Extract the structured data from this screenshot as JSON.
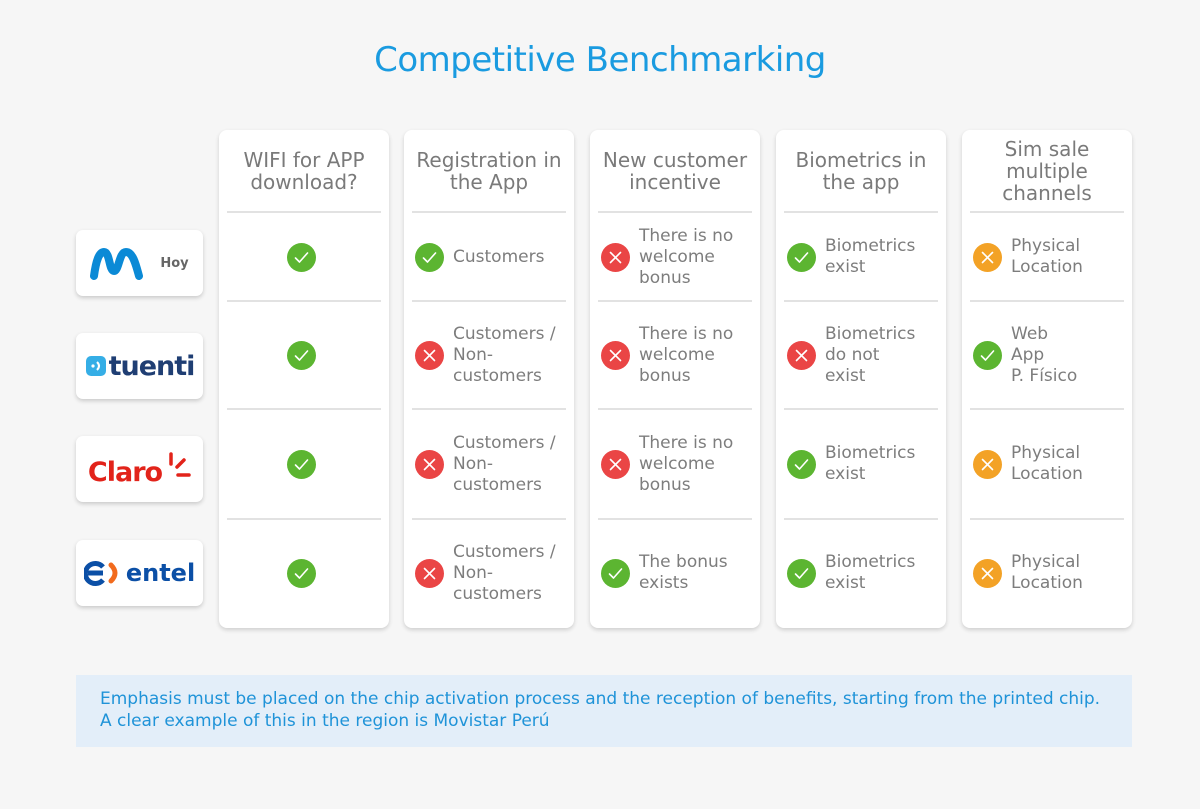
{
  "page": {
    "title": "Competitive Benchmarking"
  },
  "colors": {
    "accent": "#1a9be0",
    "check": "#5cb531",
    "cross": "#ea4545",
    "partial": "#f3a226"
  },
  "brands": [
    {
      "name": "movistar",
      "label": "Hoy"
    },
    {
      "name": "tuenti",
      "logo_text": "tuenti"
    },
    {
      "name": "claro",
      "logo_text": "Claro"
    },
    {
      "name": "entel",
      "logo_text": "entel"
    }
  ],
  "columns": [
    {
      "header": "WIFI for APP download?",
      "cells": [
        {
          "status": "check",
          "text": ""
        },
        {
          "status": "check",
          "text": ""
        },
        {
          "status": "check",
          "text": ""
        },
        {
          "status": "check",
          "text": ""
        }
      ]
    },
    {
      "header": "Registration in the App",
      "cells": [
        {
          "status": "check",
          "text": "Customers"
        },
        {
          "status": "cross",
          "text": "Customers /\nNon-\ncustomers"
        },
        {
          "status": "cross",
          "text": "Customers /\nNon-\ncustomers"
        },
        {
          "status": "cross",
          "text": "Customers /\nNon-\ncustomers"
        }
      ]
    },
    {
      "header": "New customer incentive",
      "cells": [
        {
          "status": "cross",
          "text": "There is no\nwelcome\nbonus"
        },
        {
          "status": "cross",
          "text": "There is no\nwelcome\nbonus"
        },
        {
          "status": "cross",
          "text": "There is no\nwelcome\nbonus"
        },
        {
          "status": "check",
          "text": "The bonus\nexists"
        }
      ]
    },
    {
      "header": "Biometrics in the app",
      "cells": [
        {
          "status": "check",
          "text": "Biometrics\nexist"
        },
        {
          "status": "cross",
          "text": "Biometrics\ndo not\nexist"
        },
        {
          "status": "check",
          "text": "Biometrics\nexist"
        },
        {
          "status": "check",
          "text": "Biometrics\nexist"
        }
      ]
    },
    {
      "header": "Sim sale multiple channels",
      "cells": [
        {
          "status": "partial",
          "text": "Physical\nLocation"
        },
        {
          "status": "check",
          "text": "Web\nApp\nP. Físico"
        },
        {
          "status": "partial",
          "text": "Physical\nLocation"
        },
        {
          "status": "partial",
          "text": "Physical\nLocation"
        }
      ]
    }
  ],
  "note": {
    "text": "Emphasis must be placed on the chip activation process and the reception of benefits, starting from the printed chip. A clear example of this in the region is Movistar Perú"
  }
}
